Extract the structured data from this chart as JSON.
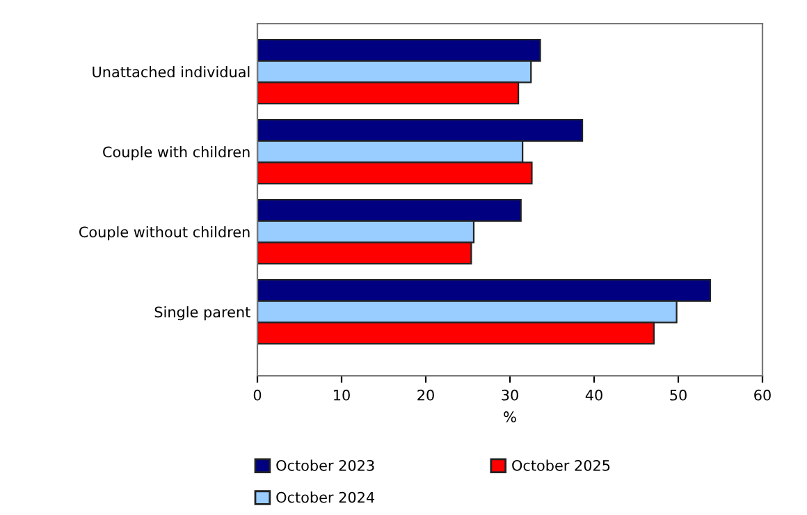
{
  "chart_data": {
    "type": "bar",
    "orientation": "horizontal",
    "xlabel": "%",
    "categories": [
      "Unattached individual",
      "Couple with children",
      "Couple without children",
      "Single parent"
    ],
    "series": [
      {
        "name": "October 2023",
        "color": "#000080",
        "values": [
          33.6,
          38.6,
          31.3,
          53.8
        ]
      },
      {
        "name": "October 2024",
        "color": "#99ccff",
        "values": [
          32.5,
          31.5,
          25.7,
          49.8
        ]
      },
      {
        "name": "October 2025",
        "color": "#ff0000",
        "values": [
          31.0,
          32.6,
          25.4,
          47.1
        ]
      }
    ],
    "xlim": [
      0,
      60
    ],
    "xticks": [
      0,
      10,
      20,
      30,
      40,
      50,
      60
    ],
    "grid": false,
    "legend": "bottom"
  }
}
